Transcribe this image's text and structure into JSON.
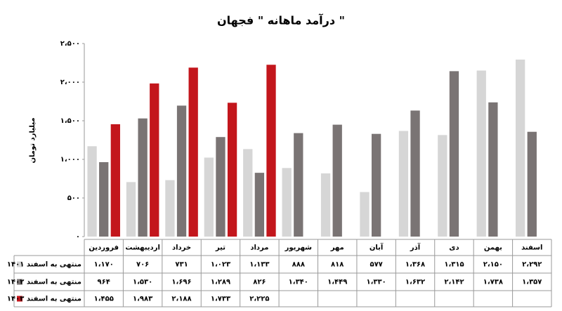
{
  "chart_data": {
    "type": "bar",
    "title": "درآمد ماهانه \" فجهان \"",
    "y_label": "میلیارد تومان",
    "categories": [
      "فروردین",
      "اردیبهشت",
      "خرداد",
      "تیر",
      "مرداد",
      "شهریور",
      "مهر",
      "آبان",
      "آذر",
      "دی",
      "بهمن",
      "اسفند"
    ],
    "series": [
      {
        "name": "منتهی به اسفند ۱۴۰۱",
        "color": "#d6d6d6",
        "values": [
          1170,
          706,
          731,
          1023,
          1133,
          888,
          818,
          577,
          1368,
          1315,
          2150,
          2292
        ],
        "value_labels": [
          "۱،۱۷۰",
          "۷۰۶",
          "۷۳۱",
          "۱،۰۲۳",
          "۱،۱۳۳",
          "۸۸۸",
          "۸۱۸",
          "۵۷۷",
          "۱،۳۶۸",
          "۱،۳۱۵",
          "۲،۱۵۰",
          "۲،۲۹۲"
        ]
      },
      {
        "name": "منتهی به اسفند ۱۴۰۲",
        "color": "#7a7474",
        "values": [
          964,
          1530,
          1696,
          1289,
          826,
          1340,
          1449,
          1330,
          1632,
          2142,
          1738,
          1357
        ],
        "value_labels": [
          "۹۶۴",
          "۱،۵۳۰",
          "۱،۶۹۶",
          "۱،۲۸۹",
          "۸۲۶",
          "۱،۳۴۰",
          "۱،۴۴۹",
          "۱،۳۳۰",
          "۱،۶۳۲",
          "۲،۱۴۲",
          "۱،۷۳۸",
          "۱،۳۵۷"
        ]
      },
      {
        "name": "منتهی به اسفند ۱۴۰۳",
        "color": "#c3161c",
        "values": [
          1455,
          1983,
          2188,
          1733,
          2225,
          null,
          null,
          null,
          null,
          null,
          null,
          null
        ],
        "value_labels": [
          "۱،۴۵۵",
          "۱،۹۸۳",
          "۲،۱۸۸",
          "۱،۷۳۳",
          "۲،۲۲۵",
          null,
          null,
          null,
          null,
          null,
          null,
          null
        ]
      }
    ],
    "ylim": [
      0,
      2500
    ],
    "yticks": [
      {
        "value": 0,
        "label": "۰"
      },
      {
        "value": 500,
        "label": "۵۰۰"
      },
      {
        "value": 1000,
        "label": "۱،۰۰۰"
      },
      {
        "value": 1500,
        "label": "۱،۵۰۰"
      },
      {
        "value": 2000,
        "label": "۲،۰۰۰"
      },
      {
        "value": 2500,
        "label": "۲،۵۰۰"
      }
    ]
  }
}
